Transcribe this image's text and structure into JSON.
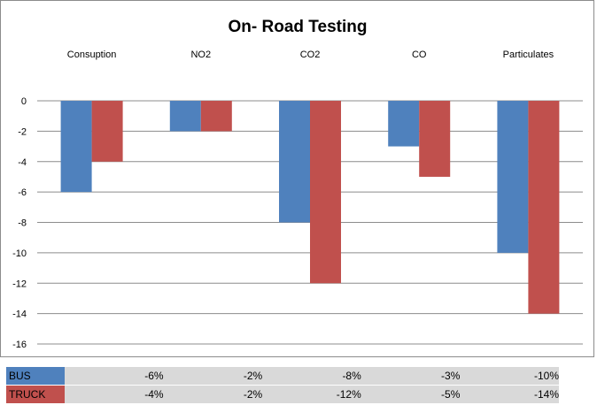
{
  "chart_data": {
    "type": "bar",
    "title": "On- Road Testing",
    "categories": [
      "Consuption",
      "NO2",
      "CO2",
      "CO",
      "Particulates"
    ],
    "series": [
      {
        "name": "BUS",
        "values": [
          -6,
          -2,
          -8,
          -3,
          -10
        ],
        "color": "#4f81bd"
      },
      {
        "name": "TRUCK",
        "values": [
          -4,
          -2,
          -12,
          -5,
          -14
        ],
        "color": "#c0504d"
      }
    ],
    "ylim": [
      -16,
      0
    ],
    "yticks": [
      "0",
      "-2",
      "-4",
      "-6",
      "-8",
      "-10",
      "-12",
      "-14",
      "-16"
    ],
    "grid": true,
    "data_table": {
      "rows": [
        {
          "label": "BUS",
          "values": [
            "-6%",
            "-2%",
            "-8%",
            "-3%",
            "-10%"
          ]
        },
        {
          "label": "TRUCK",
          "values": [
            "-4%",
            "-2%",
            "-12%",
            "-5%",
            "-14%"
          ]
        }
      ]
    }
  }
}
